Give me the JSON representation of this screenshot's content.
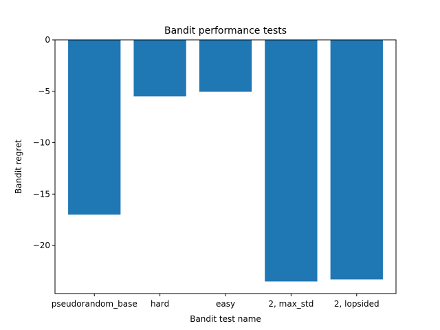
{
  "chart_data": {
    "type": "bar",
    "title": "Bandit performance tests",
    "xlabel": "Bandit test name",
    "ylabel": "Bandit regret",
    "categories": [
      "pseudorandom_base",
      "hard",
      "easy",
      "2, max_std",
      "2, lopsided"
    ],
    "values": [
      -17.0,
      -5.5,
      -5.05,
      -23.5,
      -23.3
    ],
    "ylim": [
      -24.675,
      0
    ],
    "yticks": [
      0,
      -5,
      -10,
      -15,
      -20
    ],
    "ytick_labels": [
      "0",
      "−5",
      "−10",
      "−15",
      "−20"
    ],
    "bar_color": "#1f77b4",
    "grid": false,
    "legend": "none"
  }
}
